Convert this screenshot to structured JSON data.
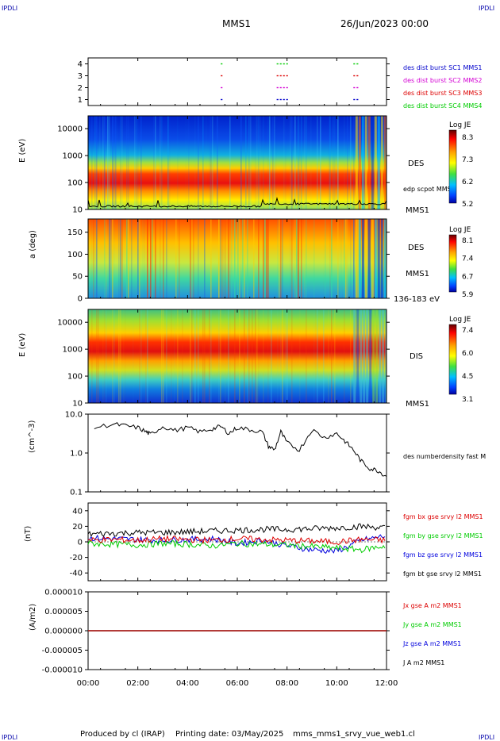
{
  "header": {
    "corner_label": "IPDLI",
    "mission": "MMS1",
    "date": "26/Jun/2023 00:00"
  },
  "footer": {
    "produced_by": "Produced by cl (IRAP)",
    "printing_date": "Printing date: 03/May/2025",
    "script_name": "mms_mms1_srvy_vue_web1.cl"
  },
  "colors": {
    "mms1": "#0000cc",
    "mms2": "#d400d4",
    "mms3": "#dd0000",
    "mms4": "#00cc00",
    "bx": "#dd0000",
    "by": "#00cc00",
    "bz": "#0000dd",
    "bt": "#000000"
  },
  "chart_data": [
    {
      "type": "scatter",
      "name": "burst-availability",
      "xlim": [
        "00:00",
        "12:00"
      ],
      "ylim": [
        0.5,
        4.5
      ],
      "yticks": [
        "1",
        "2",
        "3",
        "4"
      ],
      "series": [
        {
          "name": "des dist burst SC1 MMS1",
          "color": "#0000cc",
          "y": 1,
          "segments": [
            [
              "05:20",
              "05:24"
            ],
            [
              "07:35",
              "08:05"
            ],
            [
              "10:40",
              "10:55"
            ]
          ]
        },
        {
          "name": "des dist burst SC2 MMS2",
          "color": "#d400d4",
          "y": 2,
          "segments": [
            [
              "05:20",
              "05:24"
            ],
            [
              "07:35",
              "08:05"
            ],
            [
              "10:40",
              "10:55"
            ]
          ]
        },
        {
          "name": "des dist burst SC3 MMS3",
          "color": "#dd0000",
          "y": 3,
          "segments": [
            [
              "05:20",
              "05:24"
            ],
            [
              "07:35",
              "08:05"
            ],
            [
              "10:40",
              "10:55"
            ]
          ]
        },
        {
          "name": "des dist burst SC4 MMS4",
          "color": "#00cc00",
          "y": 4,
          "segments": [
            [
              "05:20",
              "05:24"
            ],
            [
              "07:35",
              "08:05"
            ],
            [
              "10:40",
              "10:55"
            ]
          ]
        }
      ]
    },
    {
      "type": "heatmap",
      "name": "des-energy",
      "ylabel": "E (eV)",
      "yscale": "log",
      "ylim": [
        10,
        30000
      ],
      "yticks": [
        "10",
        "100",
        "1000",
        "10000"
      ],
      "instrument": "DES",
      "sc": "MMS1",
      "colorbar": {
        "title": "Log JE",
        "ticks": [
          "8.3",
          "7.3",
          "6.2",
          "5.2"
        ]
      },
      "overlay": "edp scpot MMS1"
    },
    {
      "type": "heatmap",
      "name": "des-pitch",
      "ylabel": "a (deg)",
      "ylim": [
        0,
        180
      ],
      "yticks": [
        "0",
        "50",
        "100",
        "150"
      ],
      "instrument": "DES",
      "sc": "MMS1",
      "energy_range": "136-183 eV",
      "colorbar": {
        "title": "Log JE",
        "ticks": [
          "8.1",
          "7.4",
          "6.7",
          "5.9"
        ]
      }
    },
    {
      "type": "heatmap",
      "name": "dis-energy",
      "ylabel": "E (eV)",
      "yscale": "log",
      "ylim": [
        10,
        30000
      ],
      "yticks": [
        "10",
        "100",
        "1000",
        "10000"
      ],
      "instrument": "DIS",
      "sc": "MMS1",
      "colorbar": {
        "title": "Log JE",
        "ticks": [
          "7.4",
          "6.0",
          "4.5",
          "3.1"
        ]
      }
    },
    {
      "type": "line",
      "name": "density",
      "ylabel": "(cm^-3)",
      "yscale": "log",
      "ylim": [
        0.1,
        10
      ],
      "yticks": [
        "0.1",
        "1.0",
        "10.0"
      ],
      "series": [
        {
          "name": "des numberdensity fast M",
          "color": "#000000"
        }
      ],
      "x": [
        "00:15",
        "01:00",
        "01:30",
        "02:00",
        "02:20",
        "02:30",
        "03:00",
        "03:30",
        "04:00",
        "04:30",
        "05:00",
        "05:20",
        "05:40",
        "06:00",
        "06:30",
        "07:00",
        "07:15",
        "07:30",
        "07:45",
        "08:00",
        "08:30",
        "09:00",
        "09:30",
        "10:00",
        "10:20",
        "10:40",
        "11:00",
        "11:20",
        "11:40",
        "12:00"
      ],
      "values": [
        4.5,
        5.5,
        5.0,
        4.5,
        3.5,
        3.0,
        4.8,
        3.8,
        4.5,
        3.5,
        4.2,
        4.8,
        3.2,
        4.5,
        4.0,
        3.5,
        1.5,
        1.2,
        3.5,
        1.8,
        1.2,
        4.0,
        2.5,
        3.2,
        2.0,
        1.2,
        0.6,
        0.4,
        0.35,
        0.25
      ]
    },
    {
      "type": "line",
      "name": "magnetic-field",
      "ylabel": "(nT)",
      "ylim": [
        -50,
        50
      ],
      "yticks": [
        "-40",
        "-20",
        "0",
        "20",
        "40"
      ],
      "x": [
        "00:00",
        "01:00",
        "02:00",
        "03:00",
        "04:00",
        "05:00",
        "06:00",
        "07:00",
        "08:00",
        "09:00",
        "10:00",
        "11:00",
        "12:00"
      ],
      "series": [
        {
          "name": "fgm bx gse srvy l2 MMS1",
          "color": "#dd0000",
          "values": [
            2,
            3,
            2,
            4,
            3,
            2,
            4,
            3,
            2,
            1,
            0,
            3,
            2
          ]
        },
        {
          "name": "fgm by gse srvy l2 MMS1",
          "color": "#00cc00",
          "values": [
            -2,
            -3,
            -4,
            -2,
            -3,
            -5,
            -2,
            -3,
            -4,
            -6,
            -8,
            -10,
            -5
          ]
        },
        {
          "name": "fgm bz gse srvy l2 MMS1",
          "color": "#0000dd",
          "values": [
            5,
            4,
            3,
            2,
            3,
            4,
            -2,
            2,
            -5,
            -10,
            -12,
            2,
            8
          ]
        },
        {
          "name": "fgm bt gse srvy l2 MMS1",
          "color": "#000000",
          "values": [
            10,
            11,
            12,
            12,
            13,
            14,
            15,
            16,
            16,
            17,
            18,
            20,
            18
          ]
        }
      ]
    },
    {
      "type": "line",
      "name": "current-density",
      "ylabel": "(A/m2)",
      "ylim": [
        -1e-05,
        1e-05
      ],
      "yticks": [
        "-0.000010",
        "-0.000005",
        "0.000000",
        "0.000005",
        "0.000010"
      ],
      "x": [
        "00:00",
        "12:00"
      ],
      "series": [
        {
          "name": "Jx gse A m2 MMS1",
          "color": "#dd0000",
          "values": [
            0,
            0
          ]
        },
        {
          "name": "Jy gse A m2 MMS1",
          "color": "#00cc00",
          "values": [
            0,
            0
          ]
        },
        {
          "name": "Jz gse A m2 MMS1",
          "color": "#0000dd",
          "values": [
            0,
            0
          ]
        },
        {
          "name": "J A m2 MMS1",
          "color": "#000000",
          "values": [
            0,
            0
          ]
        }
      ]
    }
  ],
  "time_axis": {
    "ticks": [
      "00:00",
      "02:00",
      "04:00",
      "06:00",
      "08:00",
      "10:00",
      "12:00"
    ]
  }
}
